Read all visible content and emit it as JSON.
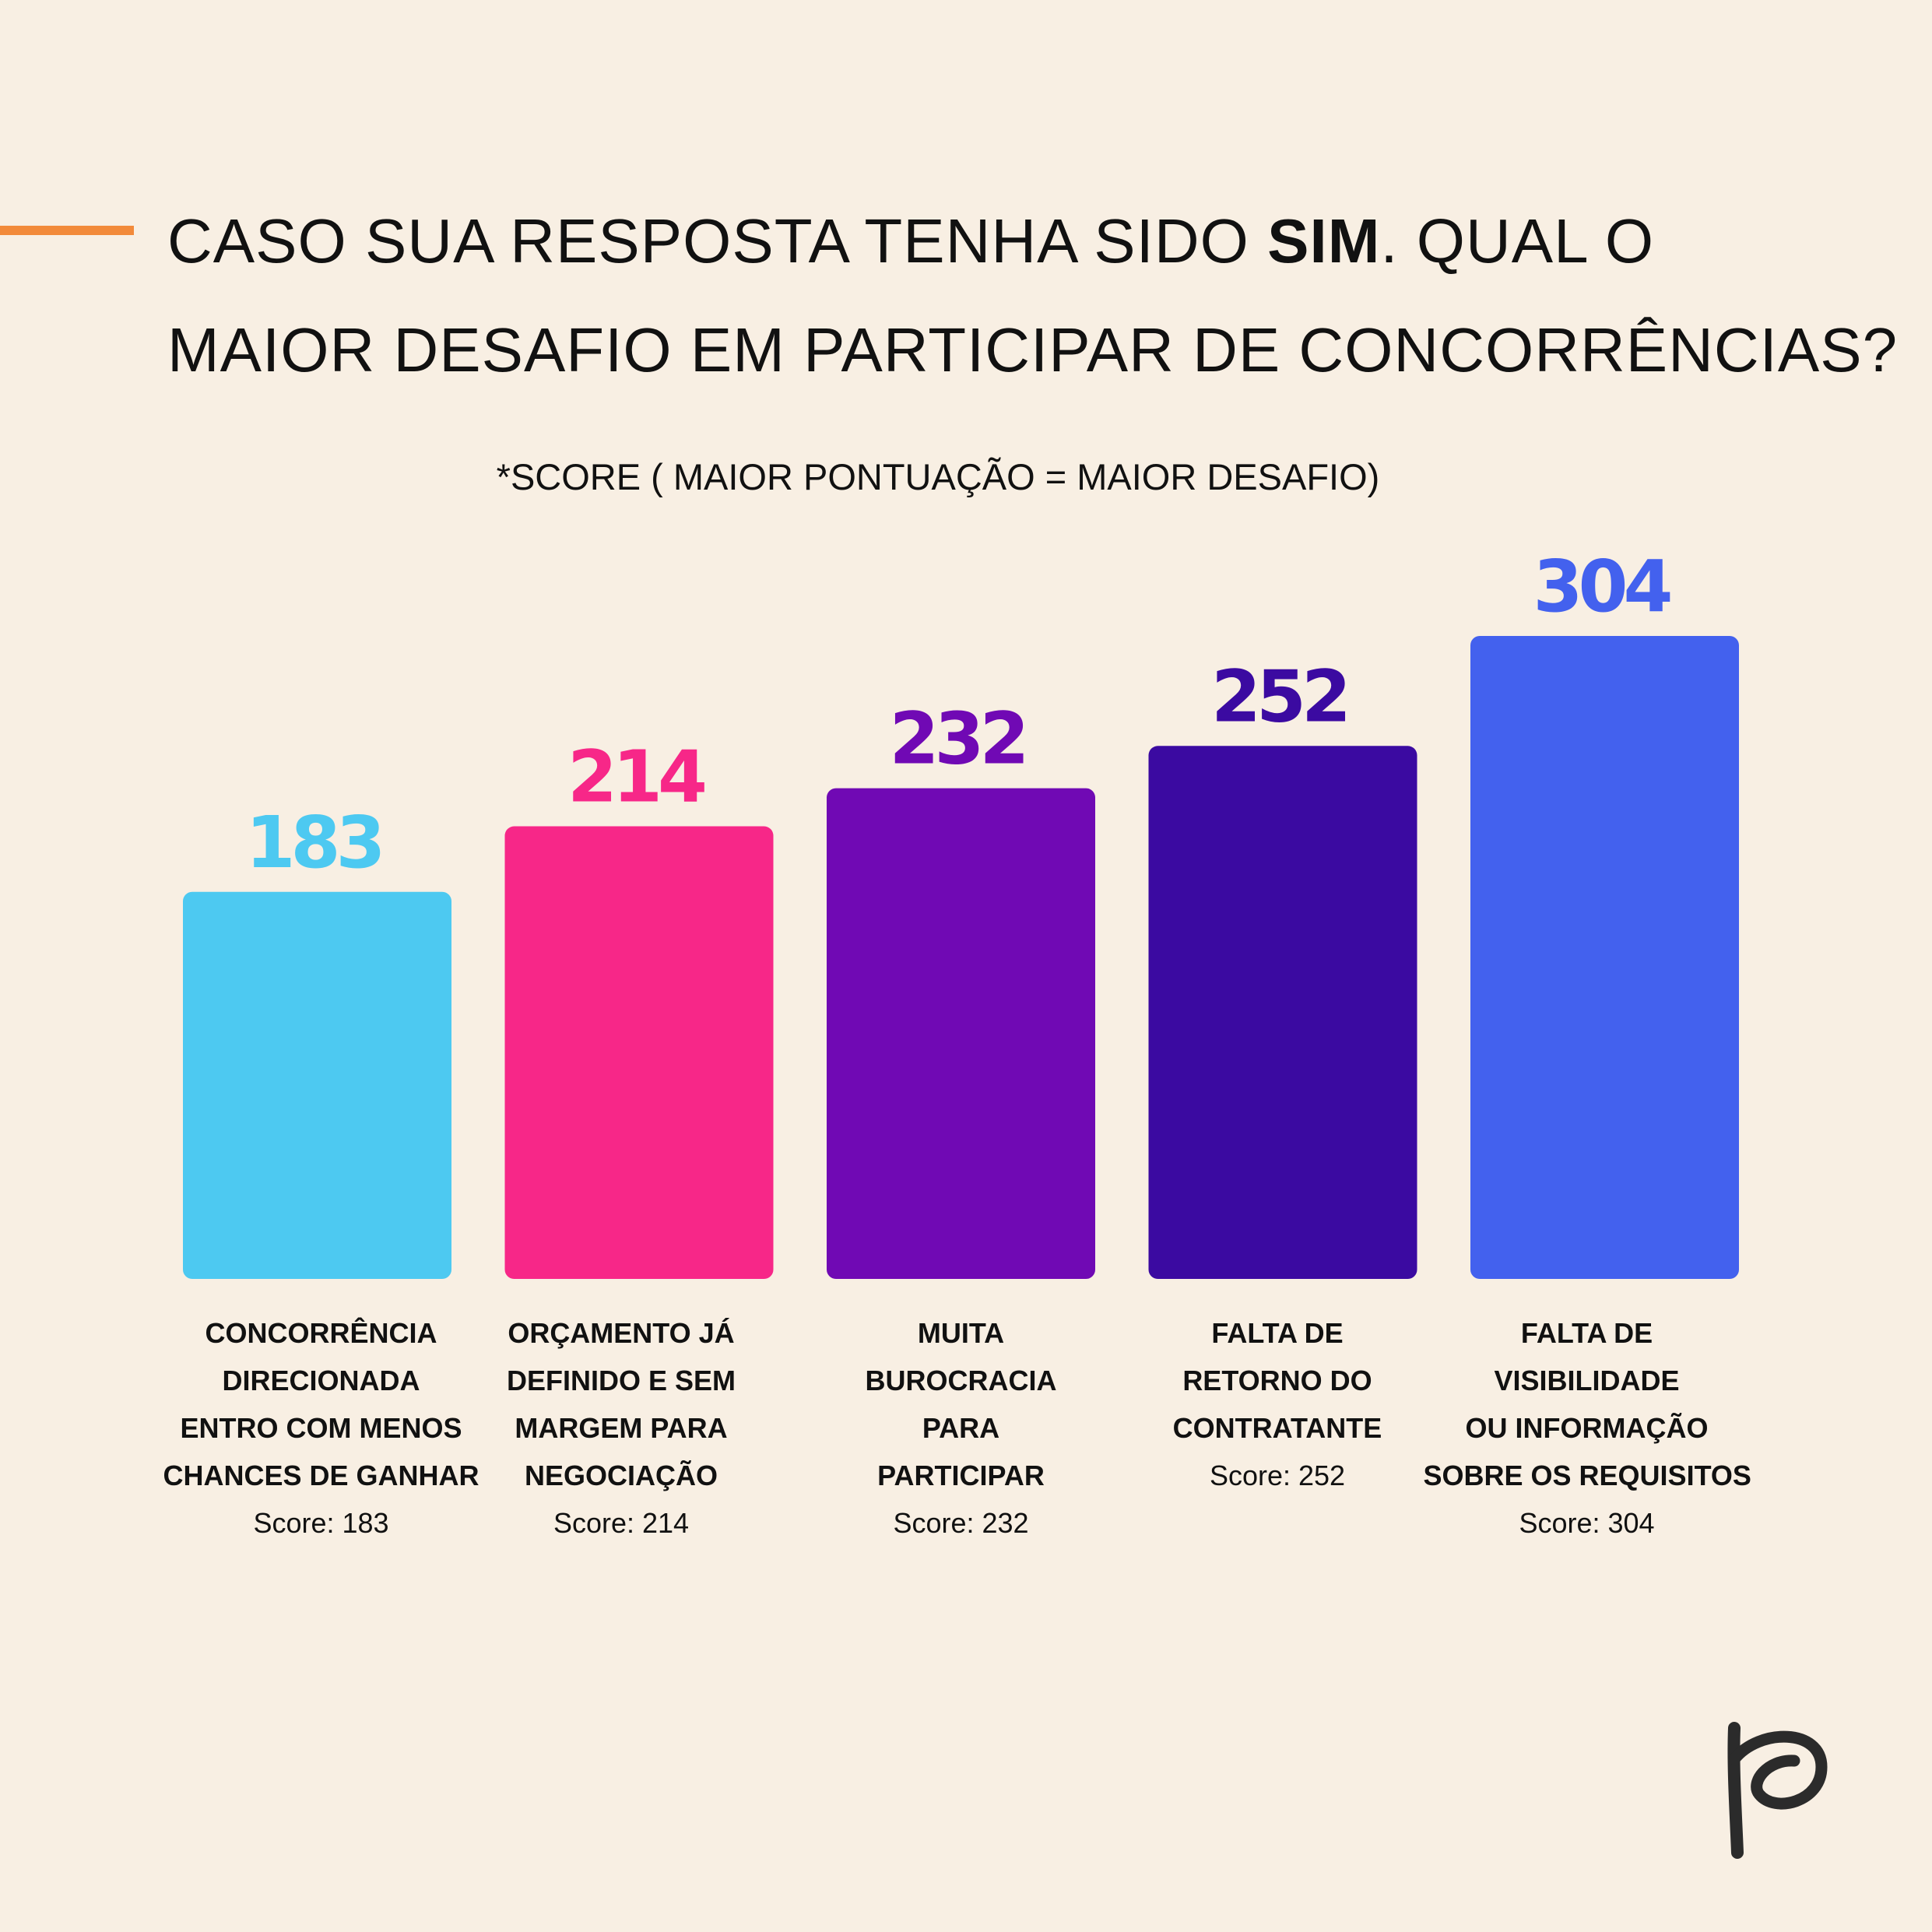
{
  "title": {
    "line1_prefix": "CASO SUA RESPOSTA TENHA SIDO ",
    "line1_strong": "SIM",
    "line1_suffix": ". QUAL O",
    "line2": "MAIOR DESAFIO EM PARTICIPAR DE CONCORRÊNCIAS?"
  },
  "subtitle": "*SCORE ( MAIOR PONTUAÇÃO = MAIOR DESAFIO)",
  "colors": {
    "background": "#f8efe3",
    "accent_line": "#f28a3a",
    "logo": "#2b2b2b"
  },
  "logo_icon": "p-script-logo-icon",
  "chart_data": {
    "type": "bar",
    "categories": [
      "CONCORRÊNCIA DIRECIONADA ENTRO COM MENOS CHANCES DE GANHAR",
      "ORÇAMENTO JÁ DEFINIDO E SEM MARGEM PARA NEGOCIAÇÃO",
      "MUITA BUROCRACIA PARA PARTICIPAR",
      "FALTA DE RETORNO DO CONTRATANTE",
      "FALTA DE VISIBILIDADE OU INFORMAÇÃO SOBRE OS REQUISITOS"
    ],
    "category_lines": [
      [
        "CONCORRÊNCIA",
        "DIRECIONADA",
        "ENTRO COM MENOS",
        "CHANCES DE GANHAR"
      ],
      [
        "ORÇAMENTO JÁ",
        "DEFINIDO E SEM",
        "MARGEM PARA",
        "NEGOCIAÇÃO"
      ],
      [
        "MUITA",
        "BUROCRACIA",
        "PARA",
        "PARTICIPAR"
      ],
      [
        "FALTA DE",
        "RETORNO DO",
        "CONTRATANTE"
      ],
      [
        "FALTA DE",
        "VISIBILIDADE",
        "OU INFORMAÇÃO",
        "SOBRE OS REQUISITOS"
      ]
    ],
    "values": [
      183,
      214,
      232,
      252,
      304
    ],
    "value_labels": [
      "183",
      "214",
      "232",
      "252",
      "304"
    ],
    "score_labels": [
      "Score: 183",
      "Score: 214",
      "Score: 232",
      "Score: 252",
      "Score: 304"
    ],
    "bar_colors": [
      "#4dc9f1",
      "#f72788",
      "#7009b4",
      "#3b0aa1",
      "#4361ee"
    ],
    "ylim": [
      0,
      304
    ],
    "grid": false,
    "legend": "none"
  }
}
